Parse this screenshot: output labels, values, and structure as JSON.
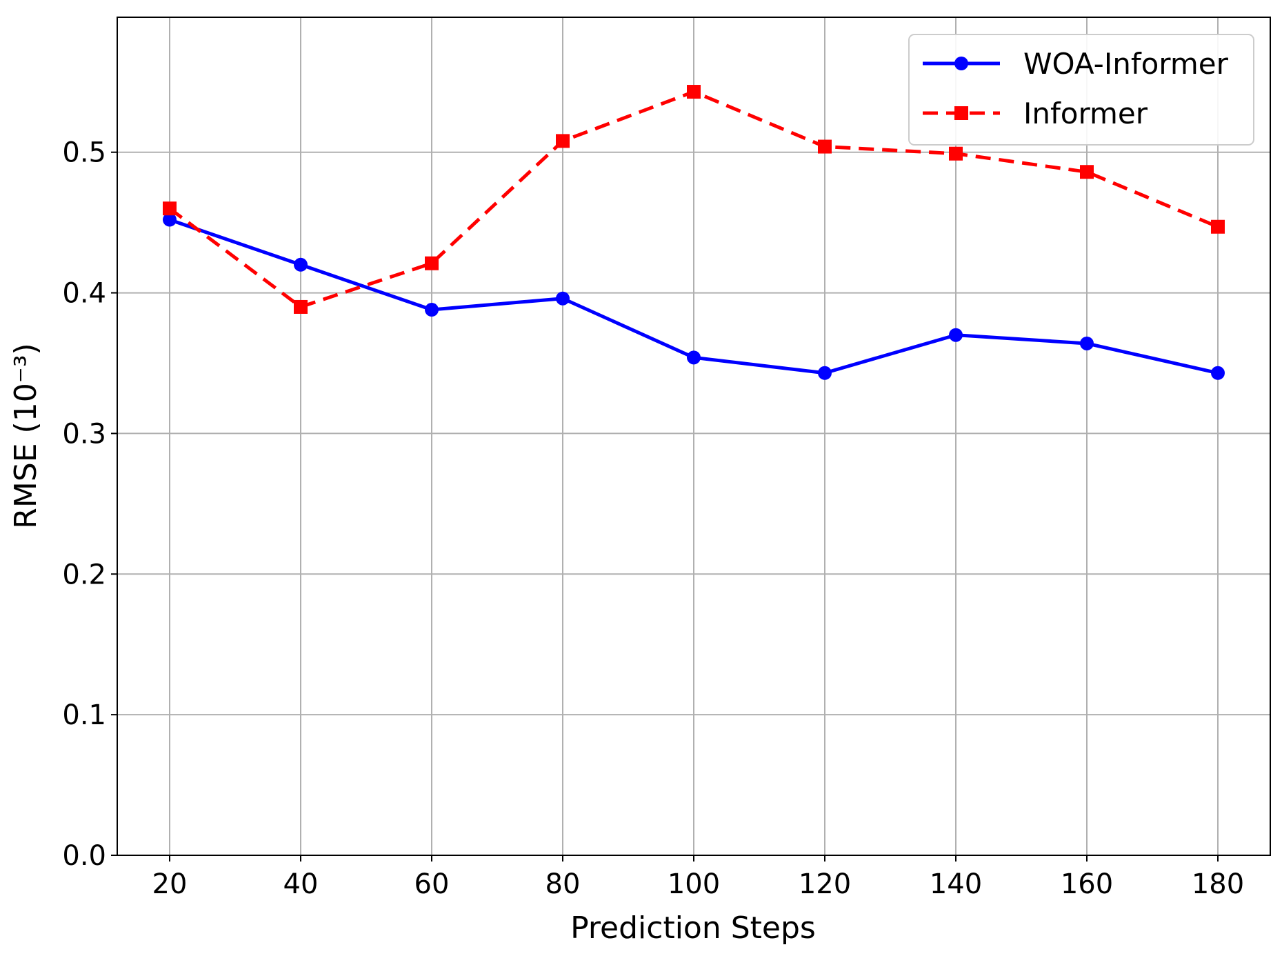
{
  "chart_data": {
    "type": "line",
    "title": "",
    "xlabel": "Prediction Steps",
    "ylabel": "RMSE (10⁻³)",
    "x": [
      20,
      40,
      60,
      80,
      100,
      120,
      140,
      160,
      180
    ],
    "x_tick_labels": [
      "20",
      "40",
      "60",
      "80",
      "100",
      "120",
      "140",
      "160",
      "180"
    ],
    "y_tick_values": [
      0.0,
      0.1,
      0.2,
      0.3,
      0.4,
      0.5
    ],
    "y_tick_labels": [
      "0.0",
      "0.1",
      "0.2",
      "0.3",
      "0.4",
      "0.5"
    ],
    "xlim": [
      12,
      188
    ],
    "ylim": [
      0.0,
      0.596
    ],
    "grid": true,
    "legend_position": "top-right",
    "series": [
      {
        "name": "WOA-Informer",
        "color": "#0000ff",
        "line_style": "solid",
        "marker": "circle",
        "values": [
          0.452,
          0.42,
          0.388,
          0.396,
          0.354,
          0.343,
          0.37,
          0.364,
          0.343
        ]
      },
      {
        "name": "Informer",
        "color": "#ff0000",
        "line_style": "dashed",
        "marker": "square",
        "values": [
          0.46,
          0.39,
          0.421,
          0.508,
          0.543,
          0.504,
          0.499,
          0.486,
          0.447
        ]
      }
    ]
  }
}
